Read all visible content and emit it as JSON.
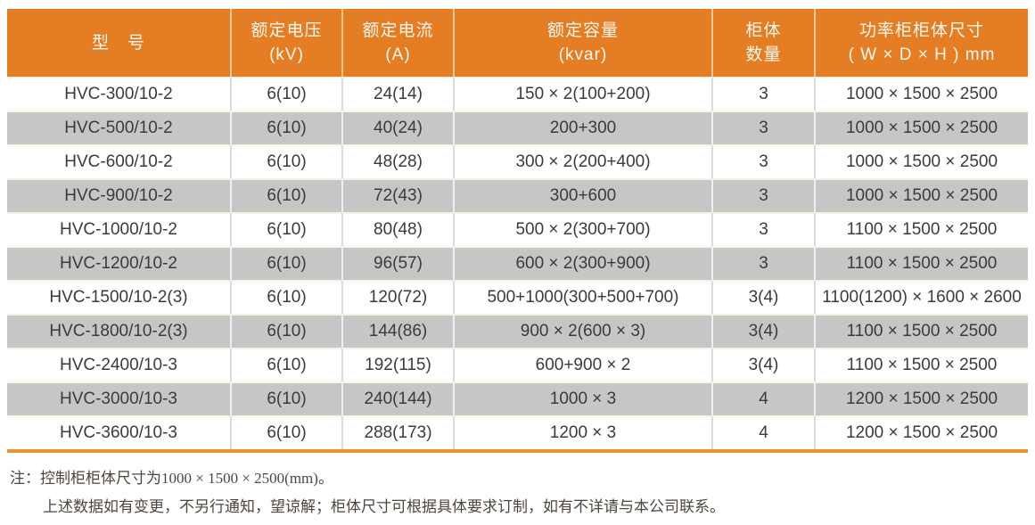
{
  "colors": {
    "header_bg": "#E57D25",
    "header_text": "#FCF7EE",
    "row_alt_bg": "#C6C6C6",
    "accent_line": "#E9932D"
  },
  "table": {
    "headers": [
      {
        "line1": "型　号",
        "line2": ""
      },
      {
        "line1": "额定电压",
        "line2": "(kV)"
      },
      {
        "line1": "额定电流",
        "line2": "(A)"
      },
      {
        "line1": "额定容量",
        "line2": "(kvar)"
      },
      {
        "line1": "柜体",
        "line2": "数量"
      },
      {
        "line1": "功率柜柜体尺寸",
        "line2": "( W × D × H ) mm"
      }
    ],
    "rows": [
      [
        "HVC-300/10-2",
        "6(10)",
        "24(14)",
        "150 × 2(100+200)",
        "3",
        "1000 × 1500 × 2500"
      ],
      [
        "HVC-500/10-2",
        "6(10)",
        "40(24)",
        "200+300",
        "3",
        "1000 × 1500 × 2500"
      ],
      [
        "HVC-600/10-2",
        "6(10)",
        "48(28)",
        "300 × 2(200+400)",
        "3",
        "1000 × 1500 × 2500"
      ],
      [
        "HVC-900/10-2",
        "6(10)",
        "72(43)",
        "300+600",
        "3",
        "1000 × 1500 × 2500"
      ],
      [
        "HVC-1000/10-2",
        "6(10)",
        "80(48)",
        "500 × 2(300+700)",
        "3",
        "1100 × 1500 × 2500"
      ],
      [
        "HVC-1200/10-2",
        "6(10)",
        "96(57)",
        "600 × 2(300+900)",
        "3",
        "1100 × 1500 × 2500"
      ],
      [
        "HVC-1500/10-2(3)",
        "6(10)",
        "120(72)",
        "500+1000(300+500+700)",
        "3(4)",
        "1100(1200) × 1600 × 2600"
      ],
      [
        "HVC-1800/10-2(3)",
        "6(10)",
        "144(86)",
        "900 × 2(600 × 3)",
        "3(4)",
        "1100 × 1500 × 2500"
      ],
      [
        "HVC-2400/10-3",
        "6(10)",
        "192(115)",
        "600+900 × 2",
        "3(4)",
        "1100 × 1500 × 2500"
      ],
      [
        "HVC-3000/10-3",
        "6(10)",
        "240(144)",
        "1000 × 3",
        "4",
        "1200 × 1500 × 2500"
      ],
      [
        "HVC-3600/10-3",
        "6(10)",
        "288(173)",
        "1200 × 3",
        "4",
        "1200 × 1500 × 2500"
      ]
    ]
  },
  "notes": {
    "line1": "注：控制柜柜体尺寸为1000 × 1500 × 2500(mm)。",
    "line2": "上述数据如有变更，不另行通知，望谅解；柜体尺寸可根据具体要求订制，如有不详请与本公司联系。"
  }
}
